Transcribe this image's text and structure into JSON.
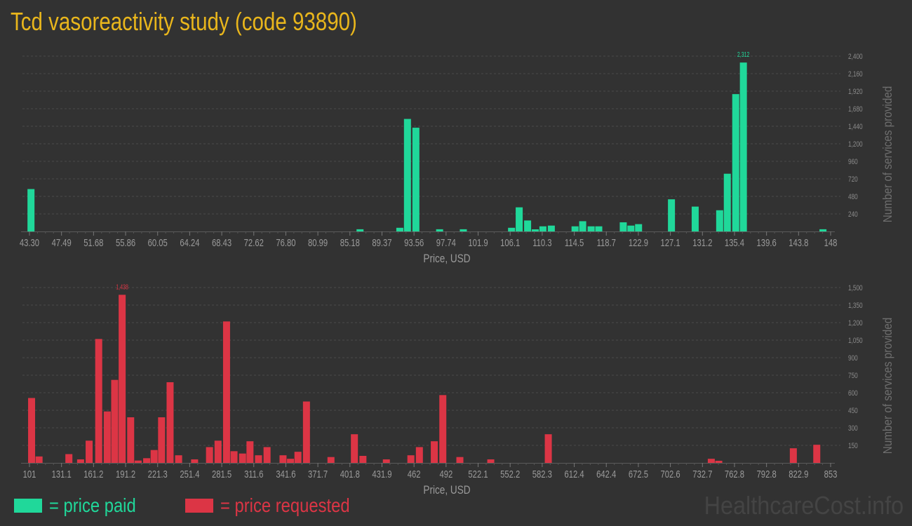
{
  "page": {
    "title": "Tcd vasoreactivity study (code 93890)",
    "watermark": "HealthcareCost.info"
  },
  "legend": {
    "items": [
      {
        "label": "= price paid",
        "color": "#20d89a"
      },
      {
        "label": "= price requested",
        "color": "#dc3545"
      }
    ]
  },
  "chart_data": [
    {
      "type": "bar",
      "title": "price paid",
      "xlabel": "Price, USD",
      "ylabel": "Number of services provided",
      "color": "#20d89a",
      "ylim": [
        0,
        2400
      ],
      "y_ticks": [
        "240",
        "480",
        "720",
        "960",
        "1,200",
        "1,440",
        "1,680",
        "1,920",
        "2,160",
        "2,400"
      ],
      "x_ticks": [
        "43.30",
        "47.49",
        "51.68",
        "55.86",
        "60.05",
        "64.24",
        "68.43",
        "72.62",
        "76.80",
        "80.99",
        "85.18",
        "89.37",
        "93.56",
        "97.74",
        "101.9",
        "106.1",
        "110.3",
        "114.5",
        "118.7",
        "122.9",
        "127.1",
        "131.2",
        "135.4",
        "139.6",
        "143.8",
        "148"
      ],
      "x_range": [
        43.3,
        148
      ],
      "max_label": "2,312",
      "grid": true,
      "bars": [
        {
          "x": 43.5,
          "value": 580
        },
        {
          "x": 86.5,
          "value": 30
        },
        {
          "x": 91.7,
          "value": 50
        },
        {
          "x": 92.7,
          "value": 1540
        },
        {
          "x": 93.8,
          "value": 1420
        },
        {
          "x": 96.9,
          "value": 30
        },
        {
          "x": 100.0,
          "value": 30
        },
        {
          "x": 106.3,
          "value": 50
        },
        {
          "x": 107.3,
          "value": 330
        },
        {
          "x": 108.4,
          "value": 150
        },
        {
          "x": 109.4,
          "value": 15
        },
        {
          "x": 110.4,
          "value": 70
        },
        {
          "x": 111.5,
          "value": 80
        },
        {
          "x": 114.6,
          "value": 70
        },
        {
          "x": 115.6,
          "value": 140
        },
        {
          "x": 116.7,
          "value": 70
        },
        {
          "x": 117.7,
          "value": 70
        },
        {
          "x": 120.9,
          "value": 125
        },
        {
          "x": 121.9,
          "value": 80
        },
        {
          "x": 122.9,
          "value": 100
        },
        {
          "x": 127.2,
          "value": 440
        },
        {
          "x": 130.3,
          "value": 340
        },
        {
          "x": 133.5,
          "value": 290
        },
        {
          "x": 134.5,
          "value": 790
        },
        {
          "x": 135.6,
          "value": 1880
        },
        {
          "x": 136.6,
          "value": 2312
        },
        {
          "x": 147.0,
          "value": 30
        }
      ]
    },
    {
      "type": "bar",
      "title": "price requested",
      "xlabel": "Price, USD",
      "ylabel": "Number of services provided",
      "color": "#dc3545",
      "ylim": [
        0,
        1500
      ],
      "y_ticks": [
        "150",
        "300",
        "450",
        "600",
        "750",
        "900",
        "1,050",
        "1,200",
        "1,350",
        "1,500"
      ],
      "x_ticks": [
        "101",
        "131.1",
        "161.2",
        "191.2",
        "221.3",
        "251.4",
        "281.5",
        "311.6",
        "341.6",
        "371.7",
        "401.8",
        "431.9",
        "462",
        "492",
        "522.1",
        "552.2",
        "582.3",
        "612.4",
        "642.4",
        "672.5",
        "702.6",
        "732.7",
        "762.8",
        "792.8",
        "822.9",
        "853"
      ],
      "x_range": [
        101,
        853
      ],
      "max_label": "1,438",
      "grid": true,
      "bars": [
        {
          "x": 103,
          "value": 555
        },
        {
          "x": 110,
          "value": 55
        },
        {
          "x": 138,
          "value": 75
        },
        {
          "x": 149,
          "value": 30
        },
        {
          "x": 157,
          "value": 190
        },
        {
          "x": 166,
          "value": 1060
        },
        {
          "x": 174,
          "value": 440
        },
        {
          "x": 181,
          "value": 710
        },
        {
          "x": 188,
          "value": 1438
        },
        {
          "x": 196,
          "value": 390
        },
        {
          "x": 203,
          "value": 20
        },
        {
          "x": 211,
          "value": 40
        },
        {
          "x": 218,
          "value": 110
        },
        {
          "x": 225,
          "value": 390
        },
        {
          "x": 233,
          "value": 690
        },
        {
          "x": 241,
          "value": 65
        },
        {
          "x": 256,
          "value": 30
        },
        {
          "x": 270,
          "value": 135
        },
        {
          "x": 278,
          "value": 190
        },
        {
          "x": 286,
          "value": 1210
        },
        {
          "x": 293,
          "value": 100
        },
        {
          "x": 301,
          "value": 80
        },
        {
          "x": 308,
          "value": 185
        },
        {
          "x": 316,
          "value": 65
        },
        {
          "x": 324,
          "value": 135
        },
        {
          "x": 339,
          "value": 65
        },
        {
          "x": 346,
          "value": 35
        },
        {
          "x": 353,
          "value": 95
        },
        {
          "x": 361,
          "value": 525
        },
        {
          "x": 384,
          "value": 50
        },
        {
          "x": 406,
          "value": 245
        },
        {
          "x": 414,
          "value": 60
        },
        {
          "x": 436,
          "value": 30
        },
        {
          "x": 459,
          "value": 65
        },
        {
          "x": 467,
          "value": 135
        },
        {
          "x": 481,
          "value": 185
        },
        {
          "x": 489,
          "value": 580
        },
        {
          "x": 505,
          "value": 50
        },
        {
          "x": 534,
          "value": 30
        },
        {
          "x": 588,
          "value": 245
        },
        {
          "x": 741,
          "value": 35
        },
        {
          "x": 748,
          "value": 15
        },
        {
          "x": 818,
          "value": 125
        },
        {
          "x": 840,
          "value": 155
        }
      ]
    }
  ]
}
